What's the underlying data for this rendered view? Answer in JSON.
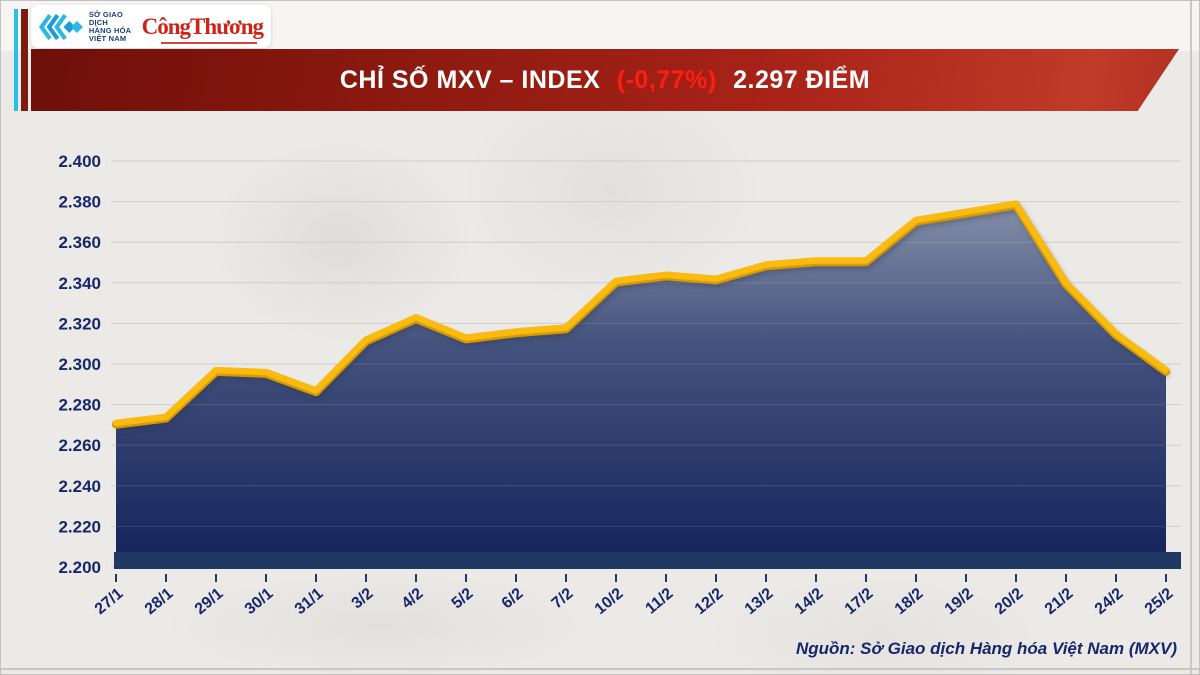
{
  "header": {
    "logo": {
      "exchange_name_lines": [
        "SỞ GIAO DỊCH",
        "HÀNG HÓA",
        "VIỆT NAM"
      ],
      "brand": "CôngThương",
      "trademark": "™"
    },
    "banner": {
      "title_main": "CHỈ SỐ MXV – INDEX",
      "title_change": "(-0,77%)",
      "title_value": "2.297 ĐIỂM"
    }
  },
  "chart_data": {
    "type": "area",
    "title": "Chỉ số MXV-Index",
    "categories": [
      "27/1",
      "28/1",
      "29/1",
      "30/1",
      "31/1",
      "3/2",
      "4/2",
      "5/2",
      "6/2",
      "7/2",
      "10/2",
      "11/2",
      "12/2",
      "13/2",
      "14/2",
      "17/2",
      "18/2",
      "19/2",
      "20/2",
      "21/2",
      "24/2",
      "25/2"
    ],
    "values": [
      2271,
      2274,
      2297,
      2296,
      2287,
      2312,
      2323,
      2313,
      2316,
      2318,
      2341,
      2344,
      2342,
      2349,
      2351,
      2351,
      2371,
      2375,
      2379,
      2340,
      2315,
      2297
    ],
    "ylim": [
      2200,
      2400
    ],
    "y_ticks": [
      2400,
      2380,
      2360,
      2340,
      2320,
      2300,
      2280,
      2260,
      2240,
      2220,
      2200
    ],
    "y_tick_labels": [
      "2.400",
      "2.380",
      "2.360",
      "2.340",
      "2.320",
      "2.300",
      "2.280",
      "2.260",
      "2.240",
      "2.220",
      "2.200"
    ],
    "xlabel": "",
    "ylabel": "",
    "grid": true,
    "legend": false,
    "colors": {
      "line": "#F9BB0F",
      "area_top": "#98A1B6",
      "area_mid": "#44537E",
      "area_bottom": "#13235A",
      "axis_bar": "#1F3864",
      "tick_label": "#17276B",
      "gridline": "#CBC8C4"
    }
  },
  "footer": {
    "source": "Nguồn: Sở Giao dịch Hàng hóa Việt Nam (MXV)"
  }
}
